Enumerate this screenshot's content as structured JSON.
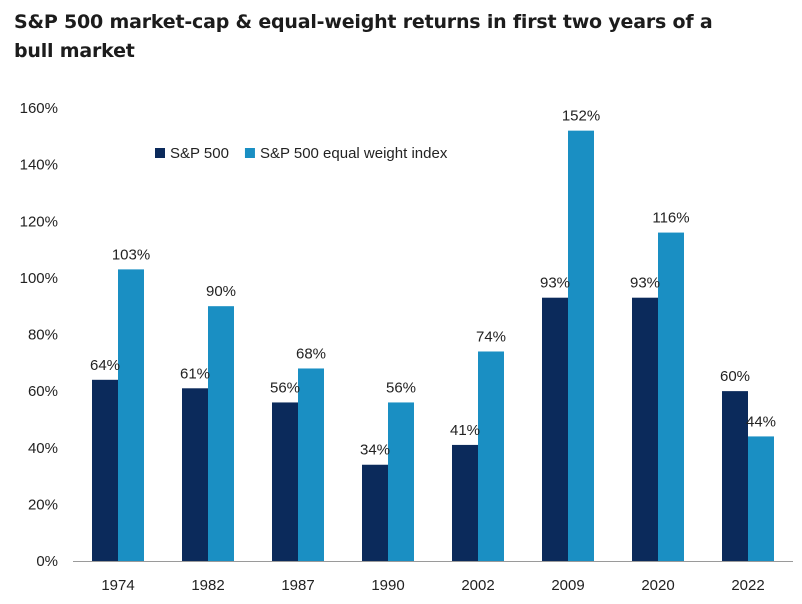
{
  "chart_data": {
    "type": "bar",
    "title": "S&P 500 market-cap & equal-weight returns in first two years of a bull market",
    "categories": [
      "1974",
      "1982",
      "1987",
      "1990",
      "2002",
      "2009",
      "2020",
      "2022"
    ],
    "series": [
      {
        "name": "S&P 500",
        "color": "#0b2a5b",
        "values": [
          64,
          61,
          56,
          34,
          41,
          93,
          93,
          60
        ],
        "labels": [
          "64%",
          "61%",
          "56%",
          "34%",
          "41%",
          "93%",
          "93%",
          "60%"
        ]
      },
      {
        "name": "S&P 500 equal weight index",
        "color": "#1a8fc3",
        "values": [
          103,
          90,
          68,
          56,
          74,
          152,
          116,
          44
        ],
        "labels": [
          "103%",
          "90%",
          "68%",
          "56%",
          "74%",
          "152%",
          "116%",
          "44%"
        ]
      }
    ],
    "yticks": [
      "0%",
      "20%",
      "40%",
      "60%",
      "80%",
      "100%",
      "120%",
      "140%",
      "160%"
    ],
    "ylim": [
      0,
      160
    ],
    "unit": "%",
    "grid": false,
    "legend": "top-left, inside plot"
  }
}
